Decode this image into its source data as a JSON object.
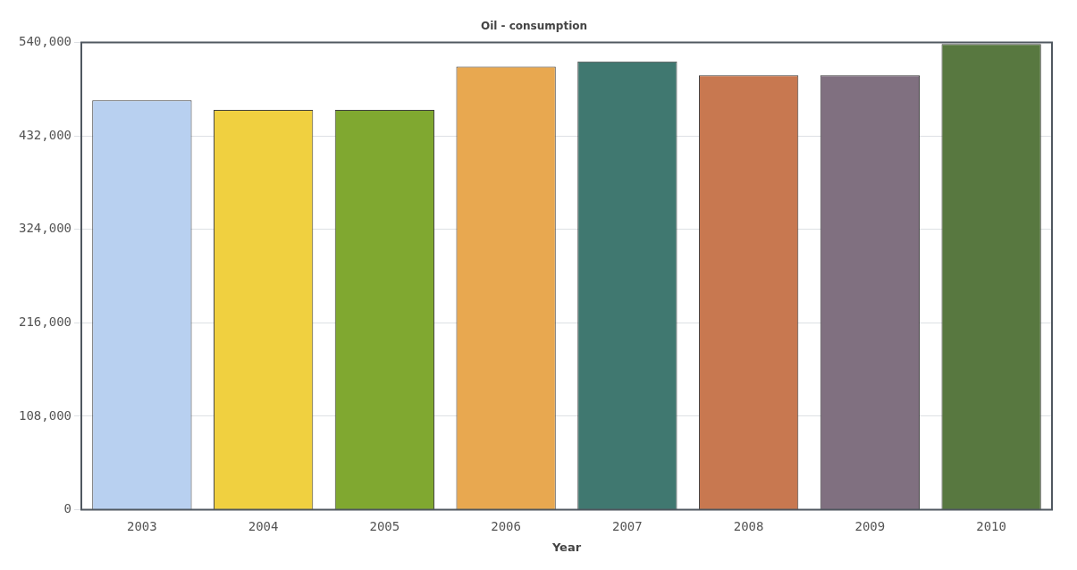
{
  "chart_data": {
    "type": "bar",
    "title": "Oil - consumption",
    "xlabel": "Year",
    "categories": [
      "2003",
      "2004",
      "2005",
      "2006",
      "2007",
      "2008",
      "2009",
      "2010"
    ],
    "values": [
      473000,
      462000,
      462000,
      512000,
      518000,
      502000,
      502000,
      538000
    ],
    "colors": [
      "#b8d0f0",
      "#f0d040",
      "#80a830",
      "#e8a850",
      "#407870",
      "#c87850",
      "#807080",
      "#587840"
    ],
    "ylim": [
      0,
      540000
    ],
    "yticks": [
      {
        "value": 0,
        "label": "0"
      },
      {
        "value": 108000,
        "label": "108,000"
      },
      {
        "value": 216000,
        "label": "216,000"
      },
      {
        "value": 324000,
        "label": "324,000"
      },
      {
        "value": 432000,
        "label": "432,000"
      },
      {
        "value": 540000,
        "label": "540,000"
      }
    ],
    "grid": "y",
    "legend": false
  }
}
